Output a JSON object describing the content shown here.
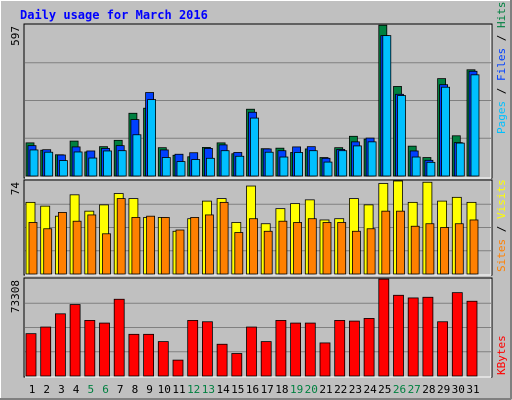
{
  "title": "Daily usage for March 2016",
  "colors": {
    "background": "#c0c0c0",
    "title": "#0000ff",
    "hits": "#008040",
    "files": "#0040ff",
    "pages": "#00c0ff",
    "visits": "#ffff00",
    "sites": "#ff8000",
    "kbytes": "#ff0000",
    "weekend_label": "#008040",
    "grid": "#808080"
  },
  "chart_data": [
    {
      "type": "bar",
      "ylabel": "Pages / Files / Hits",
      "ymax_label": "597",
      "ylim": [
        0,
        597
      ],
      "categories": [
        "1",
        "2",
        "3",
        "4",
        "5",
        "6",
        "7",
        "8",
        "9",
        "10",
        "11",
        "12",
        "13",
        "14",
        "15",
        "16",
        "17",
        "18",
        "19",
        "20",
        "21",
        "22",
        "23",
        "24",
        "25",
        "26",
        "27",
        "28",
        "29",
        "30",
        "31"
      ],
      "series": [
        {
          "name": "Hits",
          "values": [
            131,
            102,
            84,
            138,
            95,
            116,
            141,
            248,
            268,
            112,
            82,
            76,
            113,
            131,
            88,
            264,
            108,
            110,
            93,
            107,
            73,
            112,
            157,
            146,
            596,
            354,
            118,
            73,
            385,
            159,
            420
          ]
        },
        {
          "name": "Files",
          "values": [
            120,
            104,
            83,
            115,
            99,
            109,
            120,
            223,
            330,
            103,
            86,
            92,
            109,
            123,
            93,
            252,
            107,
            100,
            115,
            116,
            70,
            105,
            135,
            150,
            555,
            323,
            99,
            62,
            361,
            132,
            414
          ]
        },
        {
          "name": "Pages",
          "values": [
            103,
            94,
            61,
            95,
            71,
            99,
            100,
            163,
            302,
            73,
            57,
            65,
            70,
            100,
            78,
            229,
            94,
            75,
            93,
            100,
            55,
            100,
            119,
            135,
            555,
            318,
            75,
            54,
            351,
            130,
            400
          ]
        }
      ]
    },
    {
      "type": "bar",
      "ylabel": "Sites / Visits",
      "ymax_label": "74",
      "ylim": [
        0,
        74
      ],
      "categories": [
        "1",
        "2",
        "3",
        "4",
        "5",
        "6",
        "7",
        "8",
        "9",
        "10",
        "11",
        "12",
        "13",
        "14",
        "15",
        "16",
        "17",
        "18",
        "19",
        "20",
        "21",
        "22",
        "23",
        "24",
        "25",
        "26",
        "27",
        "28",
        "29",
        "30",
        "31"
      ],
      "series": [
        {
          "name": "Visits",
          "values": [
            57,
            54,
            46,
            63,
            50,
            55,
            64,
            60,
            45,
            45,
            34,
            44,
            58,
            60,
            41,
            70,
            40,
            52,
            56,
            59,
            43,
            44,
            60,
            55,
            72,
            74,
            57,
            73,
            58,
            61,
            57
          ]
        },
        {
          "name": "Sites",
          "values": [
            41,
            36,
            49,
            42,
            47,
            32,
            60,
            45,
            46,
            45,
            35,
            45,
            47,
            57,
            33,
            44,
            34,
            42,
            41,
            44,
            41,
            41,
            34,
            36,
            50,
            50,
            38,
            40,
            37,
            40,
            43
          ]
        }
      ]
    },
    {
      "type": "bar",
      "ylabel": "KBytes",
      "ymax_label": "73308",
      "ylim": [
        0,
        73308
      ],
      "categories": [
        "1",
        "2",
        "3",
        "4",
        "5",
        "6",
        "7",
        "8",
        "9",
        "10",
        "11",
        "12",
        "13",
        "14",
        "15",
        "16",
        "17",
        "18",
        "19",
        "20",
        "21",
        "22",
        "23",
        "24",
        "25",
        "26",
        "27",
        "28",
        "29",
        "30",
        "31"
      ],
      "series": [
        {
          "name": "KBytes",
          "values": [
            32000,
            37000,
            47000,
            54000,
            42000,
            40000,
            58000,
            31500,
            31500,
            26000,
            12000,
            42000,
            41000,
            24000,
            17000,
            37000,
            26000,
            42000,
            40000,
            40000,
            25000,
            42000,
            41500,
            43500,
            73200,
            61000,
            59000,
            59500,
            41000,
            63000,
            56500
          ]
        }
      ]
    }
  ]
}
